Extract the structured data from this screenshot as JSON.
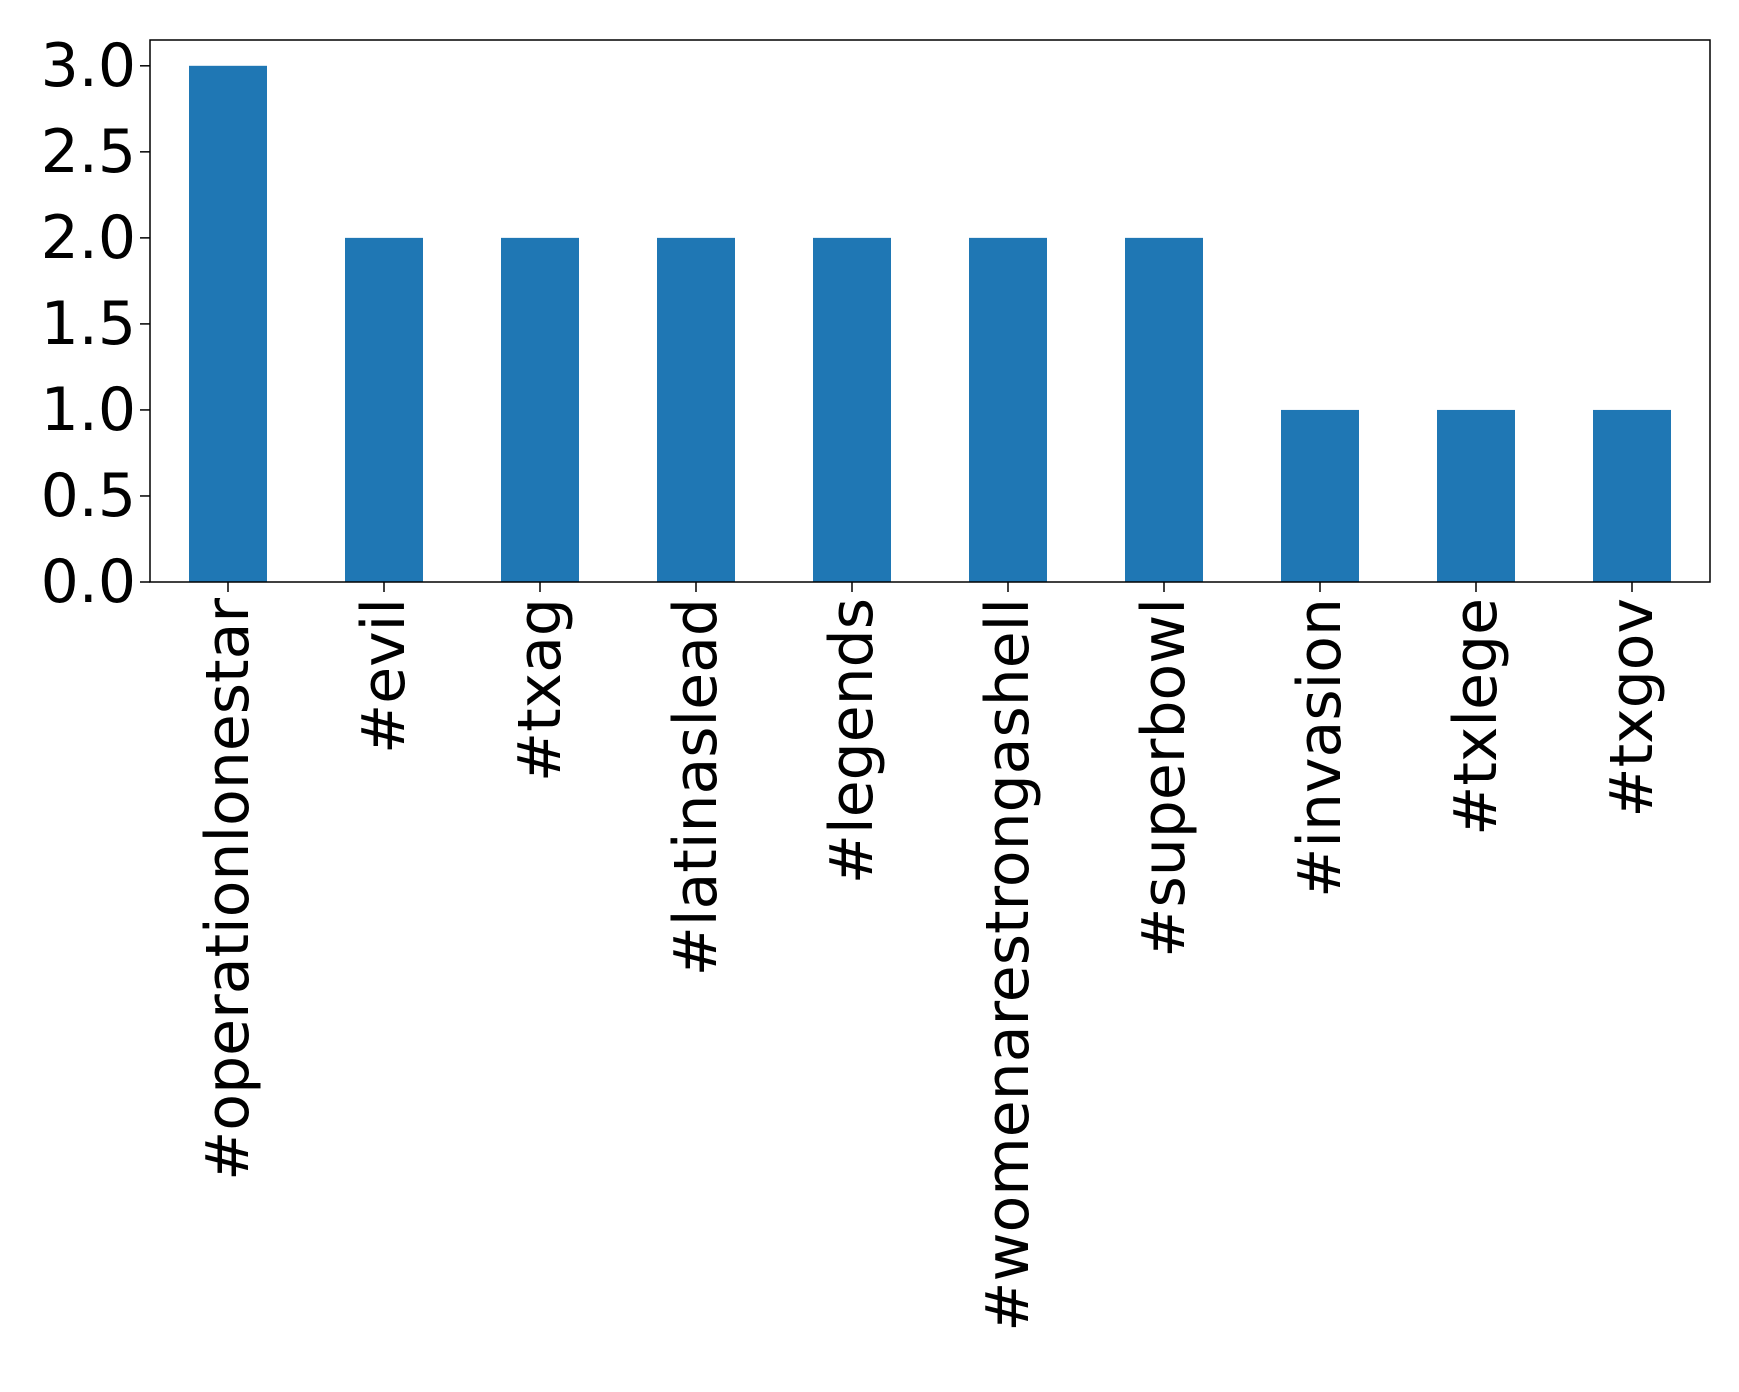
{
  "chart_data": {
    "type": "bar",
    "title": "",
    "xlabel": "",
    "ylabel": "",
    "categories": [
      "#operationlonestar",
      "#evil",
      "#txag",
      "#latinaslead",
      "#legends",
      "#womenarestrongashell",
      "#superbowl",
      "#invasion",
      "#txlege",
      "#txgov"
    ],
    "values": [
      3,
      2,
      2,
      2,
      2,
      2,
      2,
      1,
      1,
      1
    ],
    "ylim": [
      0,
      3.15
    ],
    "yticks": [
      0.0,
      0.5,
      1.0,
      1.5,
      2.0,
      2.5,
      3.0
    ],
    "ytick_labels": [
      "0.0",
      "0.5",
      "1.0",
      "1.5",
      "2.0",
      "2.5",
      "3.0"
    ],
    "grid": false,
    "legend": "none",
    "colors": {
      "bar": "#1f77b4",
      "axis": "#000000",
      "background": "#ffffff"
    }
  }
}
